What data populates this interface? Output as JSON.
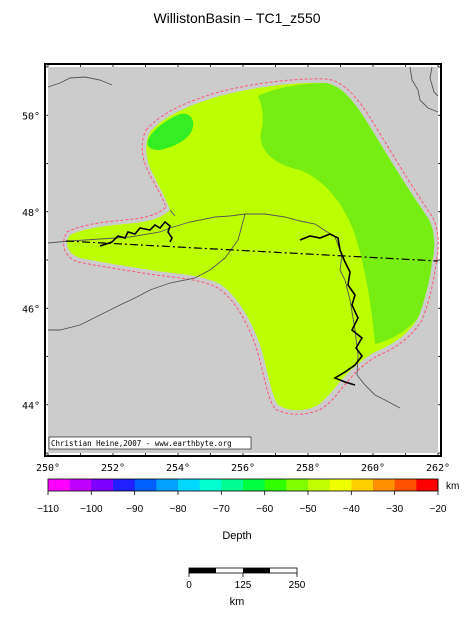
{
  "title": "WillistonBasin – TC1_z550",
  "axes": {
    "lon_ticks": [
      "250°",
      "252°",
      "254°",
      "256°",
      "258°",
      "260°",
      "262°"
    ],
    "lat_ticks": [
      "50°",
      "48°",
      "46°",
      "44°"
    ],
    "lon_range": [
      250,
      262
    ],
    "lat_range": [
      43,
      51
    ]
  },
  "credit": "Christian Heine,2007 - www.earthbyte.org",
  "colorbar": {
    "label": "Depth",
    "unit": "km",
    "ticks": [
      "−110",
      "−100",
      "−90",
      "−80",
      "−70",
      "−60",
      "−50",
      "−40",
      "−30",
      "−20"
    ],
    "range": [
      -110,
      -20
    ],
    "colors": [
      "#ff00ff",
      "#c000ff",
      "#8000ff",
      "#2020ff",
      "#0060ff",
      "#00a0ff",
      "#00d8ff",
      "#00ffd0",
      "#00ff90",
      "#00ff40",
      "#30ff00",
      "#80ff00",
      "#c0ff00",
      "#f0ff00",
      "#ffd000",
      "#ff9000",
      "#ff5000",
      "#ff0000"
    ]
  },
  "scalebar": {
    "labels": [
      "0",
      "125",
      "250"
    ],
    "unit": "km"
  },
  "map_colors": {
    "land": "#cccccc",
    "green_zone": "#77ee11",
    "yellowgreen_zone": "#bbff00",
    "bright_green": "#33ee22",
    "basin_outline": "#ff5577"
  }
}
